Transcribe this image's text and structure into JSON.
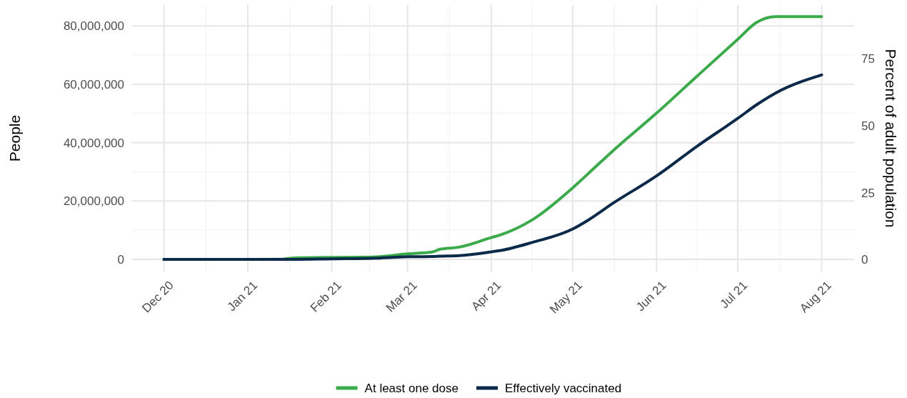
{
  "chart_data": {
    "type": "line",
    "ylabel": "People",
    "y2label": "Percent of adult population",
    "x": [
      "2020-12-01",
      "2021-01-01",
      "2021-01-14",
      "2021-01-18",
      "2021-02-01",
      "2021-02-16",
      "2021-03-01",
      "2021-03-10",
      "2021-03-13",
      "2021-03-20",
      "2021-04-01",
      "2021-04-04",
      "2021-04-16",
      "2021-05-01",
      "2021-05-07",
      "2021-05-16",
      "2021-06-01",
      "2021-06-16",
      "2021-07-01",
      "2021-07-08",
      "2021-07-15",
      "2021-08-01"
    ],
    "series": [
      {
        "name": "At least one dose",
        "color": "#3aaa4a",
        "values": [
          0,
          0,
          100000,
          500000,
          700000,
          800000,
          1900000,
          2500000,
          3500000,
          4200000,
          7500000,
          8300000,
          13500000,
          24500000,
          29600000,
          37300000,
          50100000,
          62800000,
          75400000,
          81200000,
          83200000,
          83200000
        ]
      },
      {
        "name": "Effectively vaccinated",
        "color": "#0b2a4a",
        "values": [
          0,
          0,
          0,
          0,
          200000,
          400000,
          900000,
          1000000,
          1100000,
          1300000,
          2600000,
          3000000,
          5800000,
          10400000,
          13600000,
          19300000,
          28600000,
          38800000,
          48300000,
          53000000,
          57000000,
          63200000
        ]
      }
    ],
    "xlim": [
      "2020-11-19",
      "2021-08-13"
    ],
    "xticks": [
      {
        "value": "2020-12-01",
        "label": "Dec 20"
      },
      {
        "value": "2021-01-01",
        "label": "Jan 21"
      },
      {
        "value": "2021-02-01",
        "label": "Feb 21"
      },
      {
        "value": "2021-03-01",
        "label": "Mar 21"
      },
      {
        "value": "2021-04-01",
        "label": "Apr 21"
      },
      {
        "value": "2021-05-01",
        "label": "May 21"
      },
      {
        "value": "2021-06-01",
        "label": "Jun 21"
      },
      {
        "value": "2021-07-01",
        "label": "Jul 21"
      },
      {
        "value": "2021-08-01",
        "label": "Aug 21"
      }
    ],
    "ylim": [
      -4150000,
      87150000
    ],
    "yticks": [
      {
        "value": 0,
        "label": "0"
      },
      {
        "value": 20000000,
        "label": "20,000,000"
      },
      {
        "value": 40000000,
        "label": "40,000,000"
      },
      {
        "value": 60000000,
        "label": "60,000,000"
      },
      {
        "value": 80000000,
        "label": "80,000,000"
      }
    ],
    "y2lim": [
      -4.53,
      95.2
    ],
    "y2ticks": [
      0,
      25,
      50,
      75
    ],
    "grid": true,
    "legend": "bottom",
    "line_style": "solid",
    "marker": "none"
  }
}
